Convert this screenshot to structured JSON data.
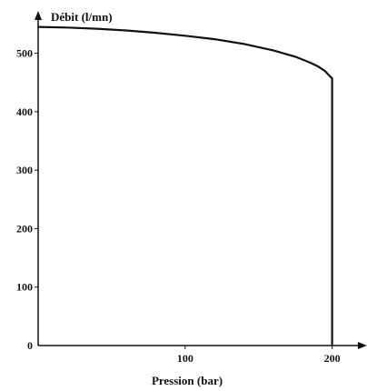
{
  "chart_data": {
    "type": "line",
    "xlabel": "Pression (bar)",
    "ylabel": "Débit (l/mn)",
    "xlim": [
      0,
      220
    ],
    "ylim": [
      0,
      560
    ],
    "x_ticks": [
      100,
      200
    ],
    "y_ticks": [
      0,
      100,
      200,
      300,
      400,
      500
    ],
    "grid": false,
    "legend": "none",
    "series": [
      {
        "x": [
          0,
          20,
          40,
          60,
          80,
          100,
          120,
          140,
          160,
          175,
          185,
          190,
          195,
          198,
          200,
          200
        ],
        "y": [
          545,
          544,
          542,
          539,
          535,
          530,
          524,
          516,
          505,
          494,
          484,
          478,
          470,
          462,
          457,
          0
        ]
      }
    ]
  }
}
